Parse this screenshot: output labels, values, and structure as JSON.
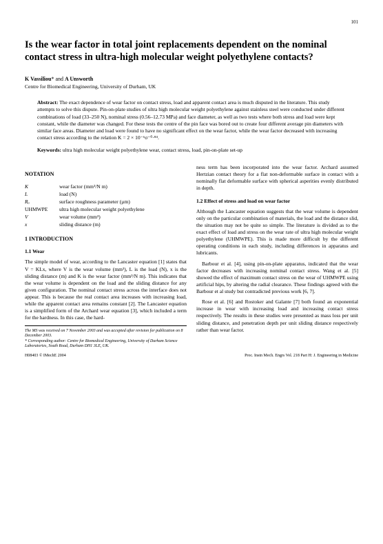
{
  "page_number": "101",
  "title": "Is the wear factor in total joint replacements dependent on the nominal contact stress in ultra-high molecular weight polyethylene contacts?",
  "authors_html": "K Vassiliou* and A Unsworth",
  "affiliation": "Centre for Biomedical Engineering, University of Durham, UK",
  "abstract_label": "Abstract:",
  "abstract_text": "The exact dependence of wear factor on contact stress, load and apparent contact area is much disputed in the literature. This study attempts to solve this dispute. Pin-on-plate studies of ultra high molecular weight polyethylene against stainless steel were conducted under different combinations of load (33–250 N), nominal stress (0.56–12.73 MPa) and face diameter, as well as two tests where both stress and load were kept constant, while the diameter was changed. For these tests the centre of the pin face was bored out to create four different average pin diameters with similar face areas. Diameter and load were found to have no significant effect on the wear factor, while the wear factor decreased with increasing contact stress according to the relation K = 2 × 10⁻⁶σ⁻⁰·⁸⁴.",
  "keywords_label": "Keywords:",
  "keywords_text": "ultra high molecular weight polyethylene wear, contact stress, load, pin-on-plate set-up",
  "notation_head": "NOTATION",
  "notation": [
    {
      "sym": "K",
      "def": "wear factor (mm³/N m)"
    },
    {
      "sym": "L",
      "def": "load (N)"
    },
    {
      "sym": "Rₐ",
      "def": "surface roughness parameter (µm)"
    },
    {
      "sym": "UHMWPE",
      "def": "ultra high molecular weight polyethylene"
    },
    {
      "sym": "V",
      "def": "wear volume (mm³)"
    },
    {
      "sym": "x",
      "def": "sliding distance (m)"
    }
  ],
  "sec1_head": "1  INTRODUCTION",
  "sec11_head": "1.1  Wear",
  "sec11_p1": "The simple model of wear, according to the Lancaster equation [1] states that V = KLx, where V is the wear volume (mm³), L is the load (N), x is the sliding distance (m) and K is the wear factor (mm³/N m). This indicates that the wear volume is dependent on the load and the sliding distance for any given configuration. The nominal contact stress across the interface does not appear. This is because the real contact area increases with increasing load, while the apparent contact area remains constant [2]. The Lancaster equation is a simplified form of the Archard wear equation [3], which included a term for the hardness. In this case, the hard-",
  "footnote1": "The MS was received on 7 November 2003 and was accepted after revision for publication on 8 December 2003.",
  "footnote2": "* Corresponding author: Centre for Biomedical Engineering, University of Durham Science Laboratories, South Road, Durham DH1 3LE, UK.",
  "col2_p1": "ness term has been incorporated into the wear factor. Archard assumed Hertzian contact theory for a flat non-deformable surface in contact with a nominally flat deformable surface with spherical asperities evenly distributed in depth.",
  "sec12_head": "1.2  Effect of stress and load on wear factor",
  "sec12_p1": "Although the Lancaster equation suggests that the wear volume is dependent only on the particular combination of materials, the load and the distance slid, the situation may not be quite so simple. The literature is divided as to the exact effect of load and stress on the wear rate of ultra high molecular weight polyethylene (UHMWPE). This is made more difficult by the different operating conditions in each study, including differences in apparatus and lubricants.",
  "sec12_p2": "Barbour et al. [4], using pin-on-plate apparatus, indicated that the wear factor decreases with increasing nominal contact stress. Wang et al. [5] showed the effect of maximum contact stress on the wear of UHMWPE using artificial hips, by altering the radial clearance. These findings agreed with the Barbour et al study but contradicted previous work [6, 7].",
  "sec12_p3": "Rose et al. [6] and Rostoker and Galante [7] both found an exponential increase in wear with increasing load and increasing contact stress respectively. The results in these studies were presented as mass loss per unit sliding distance, and penetration depth per unit sliding distance respectively rather than wear factor.",
  "footer_left": "H08403 © IMechE 2004",
  "footer_right": "Proc. Instn Mech. Engrs Vol. 218 Part H: J. Engineering in Medicine"
}
